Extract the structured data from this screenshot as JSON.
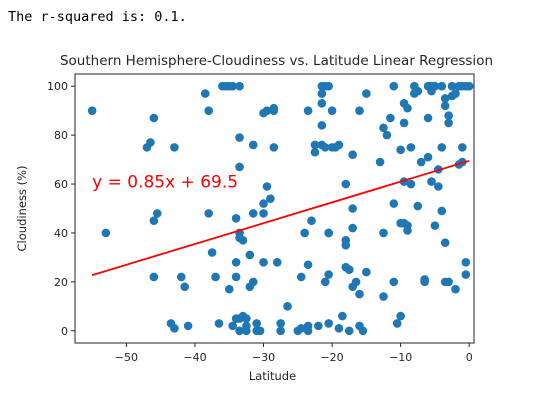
{
  "output": {
    "text": "The r-squared is: 0.1."
  },
  "chart_data": {
    "type": "scatter",
    "title": "Southern Hemisphere-Cloudiness vs. Latitude Linear Regression",
    "xlabel": "Latitude",
    "ylabel": "Cloudiness (%)",
    "xlim": [
      -57.5,
      0.7
    ],
    "ylim": [
      -5,
      105
    ],
    "xticks": [
      -50,
      -40,
      -30,
      -20,
      -10,
      0
    ],
    "yticks": [
      0,
      20,
      40,
      60,
      80,
      100
    ],
    "grid": false,
    "point_color": "#1f77b4",
    "line_color": "#ff0000",
    "regression": {
      "slope": 0.85,
      "intercept": 69.5,
      "x_range": [
        -55,
        0
      ],
      "equation": "y = 0.85x + 69.5",
      "annotation_at": [
        -55,
        61
      ]
    },
    "points": [
      [
        -55,
        90
      ],
      [
        -53,
        40
      ],
      [
        -47,
        75
      ],
      [
        -46.5,
        77
      ],
      [
        -46,
        87
      ],
      [
        -46,
        45
      ],
      [
        -45.5,
        48
      ],
      [
        -46,
        22
      ],
      [
        -43,
        75
      ],
      [
        -43.5,
        3
      ],
      [
        -43,
        1
      ],
      [
        -42,
        22
      ],
      [
        -41.5,
        18
      ],
      [
        -41,
        2
      ],
      [
        -38.5,
        97
      ],
      [
        -38,
        48
      ],
      [
        -38,
        90
      ],
      [
        -37.5,
        32
      ],
      [
        -37,
        22
      ],
      [
        -36.5,
        3
      ],
      [
        -36,
        100
      ],
      [
        -35.5,
        100
      ],
      [
        -35,
        100
      ],
      [
        -35,
        17
      ],
      [
        -34.5,
        100
      ],
      [
        -34.5,
        2
      ],
      [
        -34,
        46
      ],
      [
        -34,
        5
      ],
      [
        -34,
        22
      ],
      [
        -34,
        28
      ],
      [
        -33.5,
        100
      ],
      [
        -33.5,
        79
      ],
      [
        -33.5,
        67
      ],
      [
        -33.5,
        40
      ],
      [
        -33.5,
        38
      ],
      [
        -33.5,
        5
      ],
      [
        -33.5,
        0
      ],
      [
        -33,
        37
      ],
      [
        -33,
        6
      ],
      [
        -32.5,
        5
      ],
      [
        -32.5,
        2
      ],
      [
        -32.5,
        0
      ],
      [
        -32,
        18
      ],
      [
        -32,
        31
      ],
      [
        -31.5,
        48
      ],
      [
        -31.5,
        76
      ],
      [
        -31.5,
        20
      ],
      [
        -31,
        3
      ],
      [
        -31,
        0
      ],
      [
        -30.5,
        0
      ],
      [
        -30,
        28
      ],
      [
        -30,
        52
      ],
      [
        -30,
        48
      ],
      [
        -30,
        89
      ],
      [
        -29.5,
        90
      ],
      [
        -29.5,
        59
      ],
      [
        -29,
        54
      ],
      [
        -28.5,
        91
      ],
      [
        -28.5,
        90
      ],
      [
        -28.5,
        75
      ],
      [
        -28,
        28
      ],
      [
        -27.5,
        3
      ],
      [
        -27.5,
        0
      ],
      [
        -26.5,
        10
      ],
      [
        -25,
        0
      ],
      [
        -24.5,
        1
      ],
      [
        -24.5,
        22
      ],
      [
        -24,
        40
      ],
      [
        -23.5,
        90
      ],
      [
        -23.5,
        27
      ],
      [
        -23.5,
        2
      ],
      [
        -23.5,
        0
      ],
      [
        -23,
        45
      ],
      [
        -22.5,
        73
      ],
      [
        -22.5,
        76
      ],
      [
        -22,
        2
      ],
      [
        -21.5,
        100
      ],
      [
        -21.5,
        97
      ],
      [
        -21.5,
        93
      ],
      [
        -21.5,
        84
      ],
      [
        -21.5,
        76
      ],
      [
        -21,
        75
      ],
      [
        -21,
        100
      ],
      [
        -21,
        20
      ],
      [
        -20.5,
        100
      ],
      [
        -20.5,
        40
      ],
      [
        -20.5,
        40
      ],
      [
        -20.5,
        23
      ],
      [
        -20.5,
        3
      ],
      [
        -20,
        90
      ],
      [
        -20,
        75
      ],
      [
        -19.5,
        75
      ],
      [
        -19,
        76
      ],
      [
        -19,
        1
      ],
      [
        -18.5,
        6
      ],
      [
        -18,
        60
      ],
      [
        -18,
        37
      ],
      [
        -18,
        35
      ],
      [
        -18,
        26
      ],
      [
        -17.5,
        25
      ],
      [
        -17.5,
        25
      ],
      [
        -17.5,
        0
      ],
      [
        -17,
        72
      ],
      [
        -17,
        50
      ],
      [
        -17,
        42
      ],
      [
        -17,
        18
      ],
      [
        -16.5,
        20
      ],
      [
        -16,
        90
      ],
      [
        -16,
        15
      ],
      [
        -16,
        2
      ],
      [
        -15.5,
        0
      ],
      [
        -15,
        97
      ],
      [
        -15,
        24
      ],
      [
        -13,
        69
      ],
      [
        -12.5,
        83
      ],
      [
        -12.5,
        40
      ],
      [
        -12.5,
        14
      ],
      [
        -12,
        80
      ],
      [
        -11.5,
        87
      ],
      [
        -11,
        52
      ],
      [
        -11,
        20
      ],
      [
        -11,
        100
      ],
      [
        -10.5,
        3
      ],
      [
        -10,
        74
      ],
      [
        -10,
        44
      ],
      [
        -10,
        6
      ],
      [
        -9.5,
        93
      ],
      [
        -9.5,
        85
      ],
      [
        -9.5,
        61
      ],
      [
        -9.5,
        44
      ],
      [
        -9,
        91
      ],
      [
        -9,
        43
      ],
      [
        -9,
        41
      ],
      [
        -8.5,
        60
      ],
      [
        -8.5,
        75
      ],
      [
        -8,
        100
      ],
      [
        -8,
        97
      ],
      [
        -7.5,
        98
      ],
      [
        -7.5,
        51
      ],
      [
        -7,
        69
      ],
      [
        -6.5,
        20
      ],
      [
        -6.5,
        21
      ],
      [
        -6,
        100
      ],
      [
        -6,
        87
      ],
      [
        -6,
        71
      ],
      [
        -5.5,
        100
      ],
      [
        -5.5,
        98
      ],
      [
        -5.5,
        61
      ],
      [
        -5,
        100
      ],
      [
        -5,
        100
      ],
      [
        -5,
        43
      ],
      [
        -4.5,
        66
      ],
      [
        -4.5,
        59
      ],
      [
        -4,
        75
      ],
      [
        -4,
        49
      ],
      [
        -4,
        100
      ],
      [
        -3.5,
        95
      ],
      [
        -3.5,
        92
      ],
      [
        -3.5,
        20
      ],
      [
        -3.5,
        36
      ],
      [
        -3,
        88
      ],
      [
        -3,
        85
      ],
      [
        -3,
        20
      ],
      [
        -2.5,
        96
      ],
      [
        -2.5,
        100
      ],
      [
        -2,
        97
      ],
      [
        -2,
        17
      ],
      [
        -1.5,
        100
      ],
      [
        -1.5,
        68
      ],
      [
        -1,
        100
      ],
      [
        -1,
        75
      ],
      [
        -1,
        69
      ],
      [
        -0.5,
        100
      ],
      [
        -0.5,
        23
      ],
      [
        0,
        100
      ],
      [
        -0.5,
        28
      ]
    ]
  }
}
